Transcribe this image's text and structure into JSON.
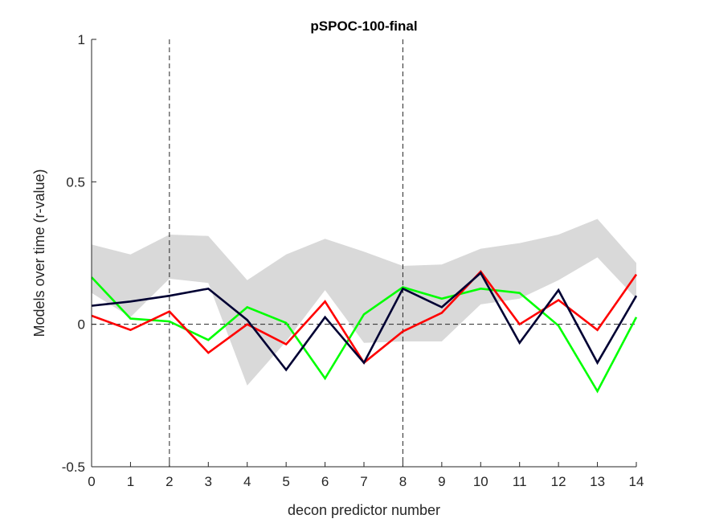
{
  "chart_data": {
    "type": "line",
    "title": "pSPOC-100-final",
    "xlabel": "decon predictor number",
    "ylabel": "Models over time (r-value)",
    "xlim": [
      0,
      14
    ],
    "ylim": [
      -0.5,
      1
    ],
    "xticks": [
      0,
      1,
      2,
      3,
      4,
      5,
      6,
      7,
      8,
      9,
      10,
      11,
      12,
      13,
      14
    ],
    "xtick_labels": [
      "0",
      "1",
      "2",
      "3",
      "4",
      "5",
      "6",
      "7",
      "8",
      "9",
      "10",
      "11",
      "12",
      "13",
      "14"
    ],
    "yticks": [
      -0.5,
      0,
      0.5,
      1
    ],
    "ytick_labels": [
      "-0.5",
      "0",
      "0.5",
      "1"
    ],
    "grid": false,
    "vlines": [
      2,
      8
    ],
    "hline": 0,
    "band": {
      "color": "#d9d9d9",
      "x": [
        0,
        1,
        2,
        3,
        4,
        5,
        6,
        7,
        8,
        9,
        10,
        11,
        12,
        13,
        14
      ],
      "upper": [
        0.28,
        0.245,
        0.315,
        0.31,
        0.155,
        0.245,
        0.3,
        0.255,
        0.205,
        0.21,
        0.265,
        0.285,
        0.315,
        0.37,
        0.215
      ],
      "lower": [
        0.11,
        0.025,
        0.16,
        0.145,
        -0.215,
        -0.06,
        0.12,
        -0.065,
        -0.06,
        -0.06,
        0.07,
        0.09,
        0.155,
        0.235,
        0.09
      ]
    },
    "series": [
      {
        "color": "#00ff00",
        "values": [
          0.165,
          0.02,
          0.01,
          -0.055,
          0.06,
          0.005,
          -0.19,
          0.035,
          0.13,
          0.09,
          0.125,
          0.11,
          -0.005,
          -0.235,
          0.025
        ]
      },
      {
        "color": "#ff0000",
        "values": [
          0.03,
          -0.02,
          0.045,
          -0.1,
          0.0,
          -0.07,
          0.08,
          -0.135,
          -0.025,
          0.04,
          0.185,
          0.0,
          0.085,
          -0.02,
          0.175
        ]
      },
      {
        "color": "#000033",
        "values": [
          0.065,
          0.08,
          0.1,
          0.125,
          0.015,
          -0.16,
          0.025,
          -0.135,
          0.125,
          0.06,
          0.18,
          -0.065,
          0.12,
          -0.135,
          0.1
        ]
      }
    ]
  }
}
